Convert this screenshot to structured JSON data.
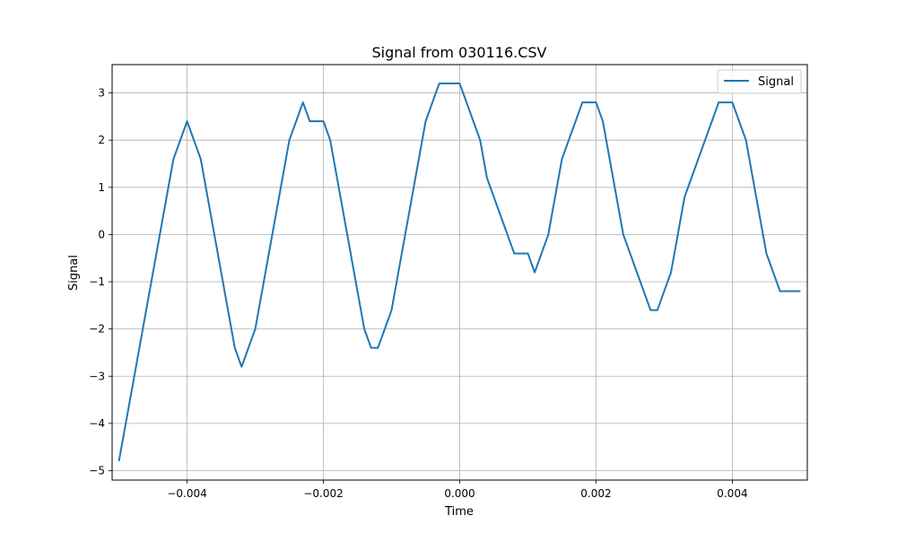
{
  "chart_data": {
    "type": "line",
    "title": "Signal from 030116.CSV",
    "xlabel": "Time",
    "ylabel": "Signal",
    "xlim": [
      -0.0051,
      0.0051
    ],
    "ylim": [
      -5.2,
      3.6
    ],
    "xticks": [
      -0.004,
      -0.002,
      0.0,
      0.002,
      0.004
    ],
    "xtick_labels": [
      "−0.004",
      "−0.002",
      "0.000",
      "0.002",
      "0.004"
    ],
    "yticks": [
      -5,
      -4,
      -3,
      -2,
      -1,
      0,
      1,
      2,
      3
    ],
    "ytick_labels": [
      "−5",
      "−4",
      "−3",
      "−2",
      "−1",
      "0",
      "1",
      "2",
      "3"
    ],
    "grid": true,
    "legend_position": "top-right",
    "series": [
      {
        "name": "Signal",
        "color": "#1f77b4",
        "x": [
          -0.005,
          -0.0049,
          -0.0048,
          -0.0047,
          -0.0046,
          -0.0045,
          -0.0044,
          -0.0043,
          -0.0042,
          -0.0041,
          -0.004,
          -0.0039,
          -0.0038,
          -0.0037,
          -0.0036,
          -0.0035,
          -0.0034,
          -0.0033,
          -0.0032,
          -0.0031,
          -0.003,
          -0.0029,
          -0.0028,
          -0.0027,
          -0.0026,
          -0.0025,
          -0.0024,
          -0.0023,
          -0.0022,
          -0.0021,
          -0.002,
          -0.0019,
          -0.0018,
          -0.0017,
          -0.0016,
          -0.0015,
          -0.0014,
          -0.0013,
          -0.0012,
          -0.0011,
          -0.001,
          -0.0009,
          -0.0008,
          -0.0007,
          -0.0006,
          -0.0005,
          -0.0004,
          -0.0003,
          -0.0002,
          -0.0001,
          0.0,
          0.0001,
          0.0002,
          0.0003,
          0.0004,
          0.0005,
          0.0006,
          0.0007,
          0.0008,
          0.0009,
          0.001,
          0.0011,
          0.0012,
          0.0013,
          0.0014,
          0.0015,
          0.0016,
          0.0017,
          0.0018,
          0.0019,
          0.002,
          0.0021,
          0.0022,
          0.0023,
          0.0024,
          0.0025,
          0.0026,
          0.0027,
          0.0028,
          0.0029,
          0.003,
          0.0031,
          0.0032,
          0.0033,
          0.0034,
          0.0035,
          0.0036,
          0.0037,
          0.0038,
          0.0039,
          0.004,
          0.0041,
          0.0042,
          0.0043,
          0.0044,
          0.0045,
          0.0046,
          0.0047,
          0.0048,
          0.0049,
          0.005
        ],
        "y": [
          -4.8,
          -4.0,
          -3.2,
          -2.4,
          -1.6,
          -0.8,
          0.0,
          0.8,
          1.6,
          2.0,
          2.4,
          2.0,
          1.6,
          0.8,
          0.0,
          -0.8,
          -1.6,
          -2.4,
          -2.8,
          -2.4,
          -2.0,
          -1.2,
          -0.4,
          0.4,
          1.2,
          2.0,
          2.4,
          2.8,
          2.4,
          2.4,
          2.4,
          2.0,
          1.2,
          0.4,
          -0.4,
          -1.2,
          -2.0,
          -2.4,
          -2.4,
          -2.0,
          -1.6,
          -0.8,
          0.0,
          0.8,
          1.6,
          2.4,
          2.8,
          3.2,
          3.2,
          3.2,
          3.2,
          2.8,
          2.4,
          2.0,
          1.2,
          0.8,
          0.4,
          0.0,
          -0.4,
          -0.4,
          -0.4,
          -0.8,
          -0.4,
          0.0,
          0.8,
          1.6,
          2.0,
          2.4,
          2.8,
          2.8,
          2.8,
          2.4,
          1.6,
          0.8,
          0.0,
          -0.4,
          -0.8,
          -1.2,
          -1.6,
          -1.6,
          -1.2,
          -0.8,
          0.0,
          0.8,
          1.2,
          1.6,
          2.0,
          2.4,
          2.8,
          2.8,
          2.8,
          2.4,
          2.0,
          1.2,
          0.4,
          -0.4,
          -0.8,
          -1.2,
          -1.2,
          -1.2,
          -1.2
        ]
      }
    ]
  }
}
